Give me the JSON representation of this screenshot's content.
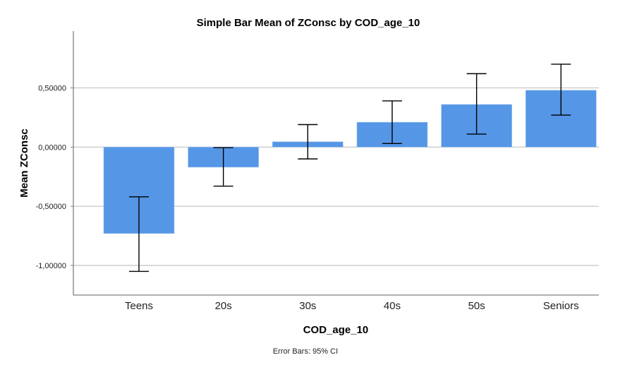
{
  "chart_data": {
    "type": "bar",
    "title": "Simple Bar Mean of ZConsc by COD_age_10",
    "xlabel": "COD_age_10",
    "ylabel": "Mean ZConsc",
    "categories": [
      "Teens",
      "20s",
      "30s",
      "40s",
      "50s",
      "Seniors"
    ],
    "values": [
      -0.73,
      -0.17,
      0.045,
      0.21,
      0.36,
      0.48
    ],
    "error_bars": {
      "label": "Error Bars: 95% CI",
      "lower": [
        -1.05,
        -0.33,
        -0.1,
        0.03,
        0.11,
        0.27
      ],
      "upper": [
        -0.42,
        -0.005,
        0.19,
        0.39,
        0.62,
        0.7
      ]
    },
    "ylim": [
      -1.25,
      0.98
    ],
    "yticks": [
      0.5,
      0.0,
      -0.5,
      -1.0
    ],
    "ytick_labels": [
      "0,50000",
      "0,00000",
      "-0,50000",
      "-1,00000"
    ],
    "grid": true,
    "legend": "none",
    "colors": {
      "bar": "#5596e6",
      "error_bar": "#000000",
      "grid": "#c8c8c8",
      "axis": "#808080"
    }
  }
}
